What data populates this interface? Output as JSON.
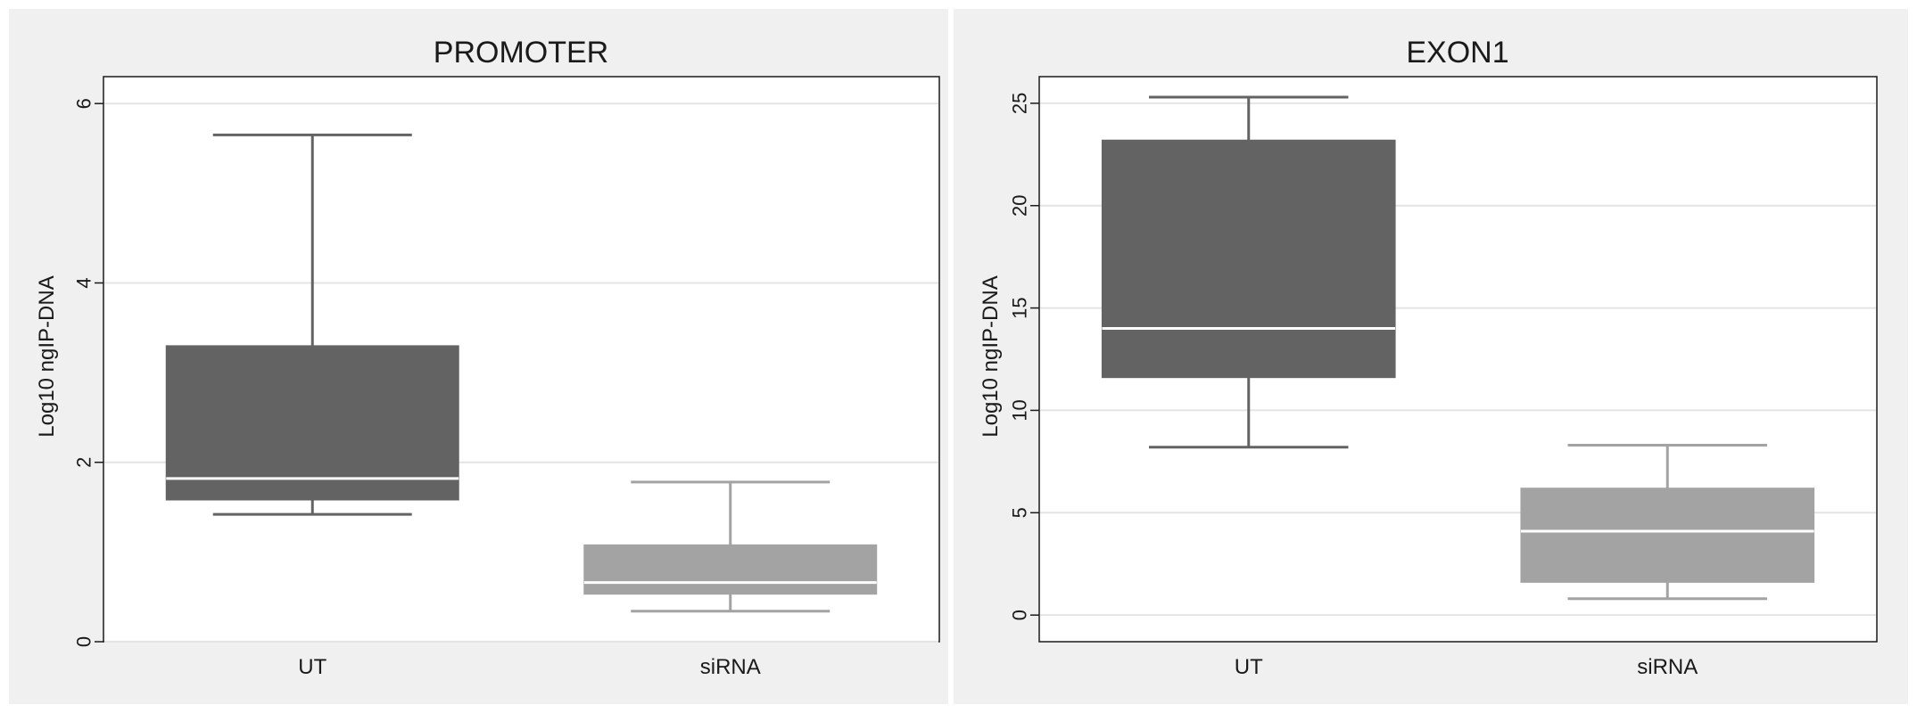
{
  "chart_data": [
    {
      "type": "box",
      "title": "PROMOTER",
      "ylabel": "Log10 ngIP-DNA",
      "xlabel": "",
      "ylim": [
        0,
        6.3
      ],
      "yticks": [
        "0",
        "2",
        "4",
        "6"
      ],
      "ytick_values": [
        0,
        2,
        4,
        6
      ],
      "grid": true,
      "categories": [
        "UT",
        "siRNA"
      ],
      "boxes": [
        {
          "category": "UT",
          "whisker_low": 1.42,
          "q1": 1.58,
          "median": 1.82,
          "q3": 3.3,
          "whisker_high": 5.65,
          "color": "#636363"
        },
        {
          "category": "siRNA",
          "whisker_low": 0.34,
          "q1": 0.53,
          "median": 0.66,
          "q3": 1.08,
          "whisker_high": 1.78,
          "color": "#a3a3a3"
        }
      ]
    },
    {
      "type": "box",
      "title": "EXON1",
      "ylabel": "Log10 ngIP-DNA",
      "xlabel": "",
      "ylim": [
        -1.3,
        26.3
      ],
      "yticks": [
        "0",
        "5",
        "10",
        "15",
        "20",
        "25"
      ],
      "ytick_values": [
        0,
        5,
        10,
        15,
        20,
        25
      ],
      "grid": true,
      "categories": [
        "UT",
        "siRNA"
      ],
      "boxes": [
        {
          "category": "UT",
          "whisker_low": 8.2,
          "q1": 11.6,
          "median": 14.0,
          "q3": 23.2,
          "whisker_high": 25.3,
          "color": "#636363"
        },
        {
          "category": "siRNA",
          "whisker_low": 0.8,
          "q1": 1.6,
          "median": 4.1,
          "q3": 6.2,
          "whisker_high": 8.3,
          "color": "#a3a3a3"
        }
      ]
    }
  ]
}
